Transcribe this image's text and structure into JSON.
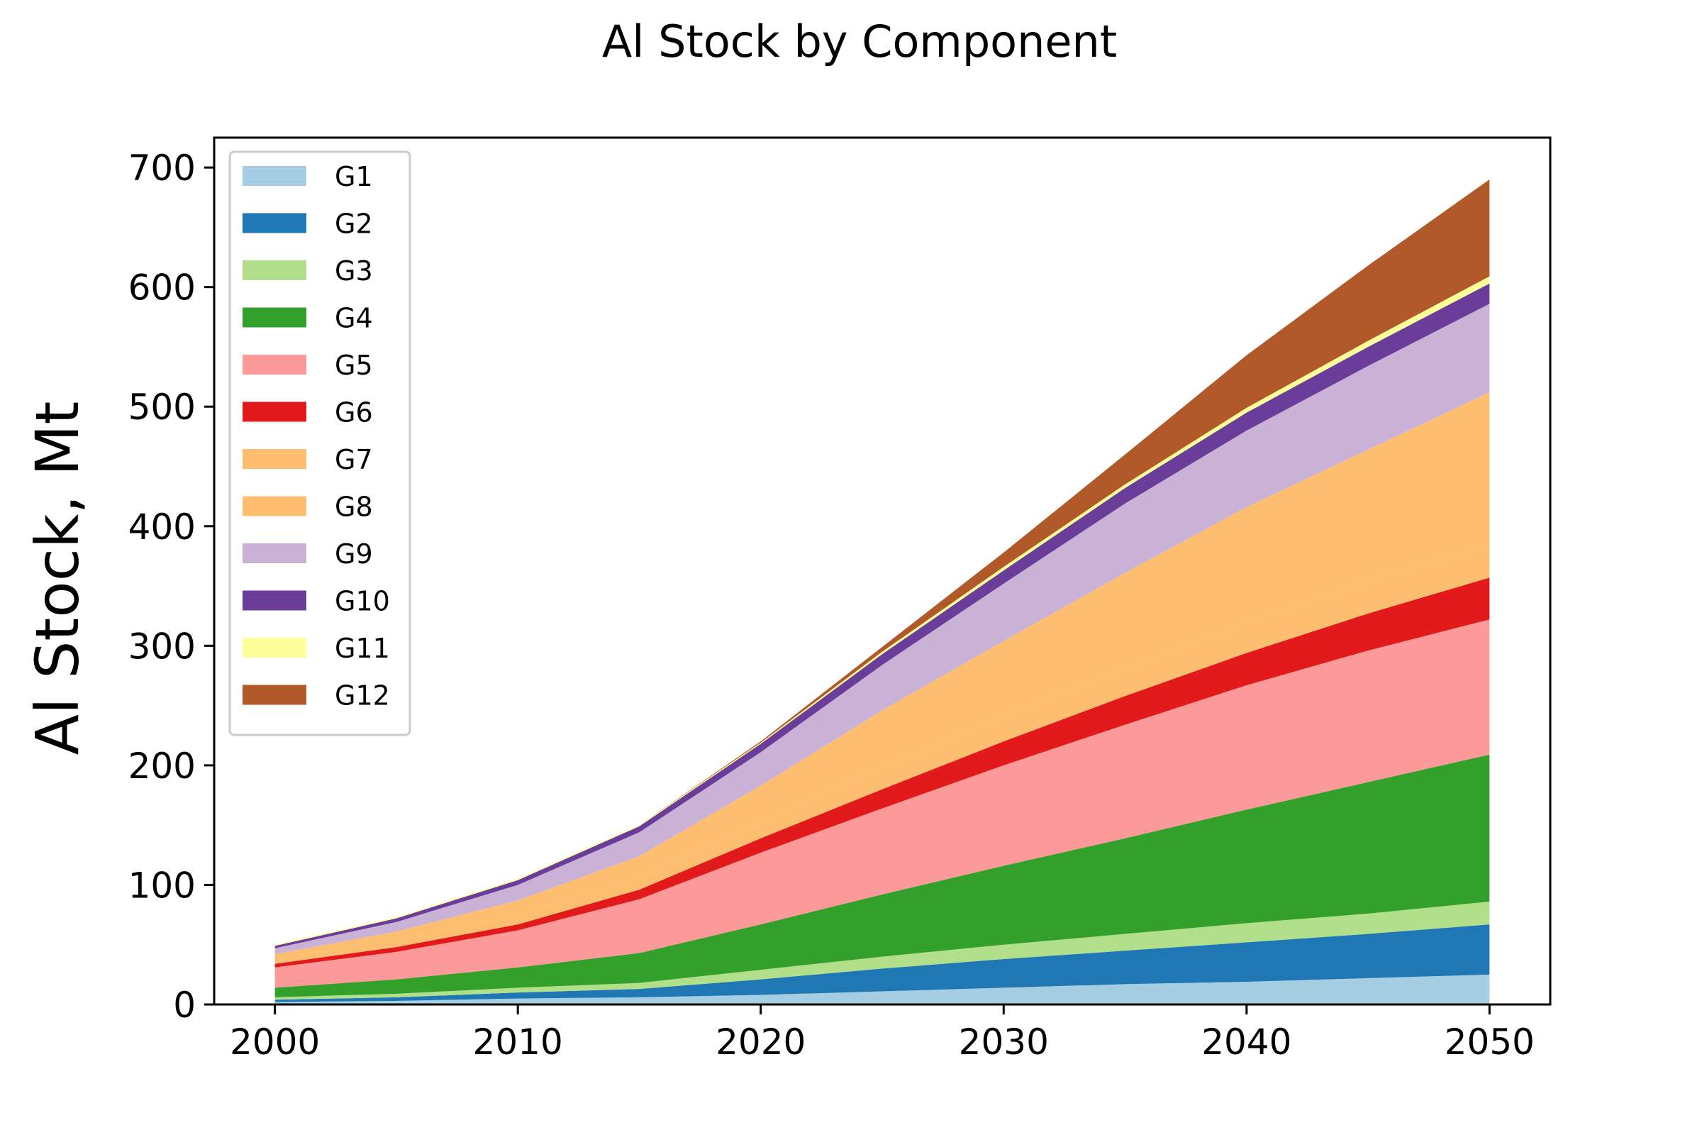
{
  "chart_data": {
    "type": "area",
    "stacked": true,
    "title": "Al Stock by Component",
    "xlabel": "",
    "ylabel": "Al Stock, Mt",
    "xlim": [
      1997.5,
      2052.5
    ],
    "ylim": [
      0,
      725
    ],
    "xticks": [
      2000,
      2010,
      2020,
      2030,
      2040,
      2050
    ],
    "yticks": [
      0,
      100,
      200,
      300,
      400,
      500,
      600,
      700
    ],
    "legend": "upper-left",
    "grid": false,
    "x": [
      2000,
      2005,
      2010,
      2015,
      2020,
      2025,
      2030,
      2035,
      2040,
      2045,
      2050
    ],
    "series": [
      {
        "name": "G1",
        "color": "#a6cee3",
        "values": [
          2,
          3,
          5,
          6,
          8,
          11,
          14,
          17,
          19,
          22,
          25
        ]
      },
      {
        "name": "G2",
        "color": "#1f78b4",
        "values": [
          2,
          3,
          5,
          7,
          13,
          19,
          24,
          28,
          33,
          37,
          42
        ]
      },
      {
        "name": "G3",
        "color": "#b2df8a",
        "values": [
          2,
          3,
          4,
          5,
          8,
          10,
          12,
          14,
          16,
          17,
          19
        ]
      },
      {
        "name": "G4",
        "color": "#33a02c",
        "values": [
          8,
          12,
          17,
          25,
          38,
          52,
          66,
          80,
          95,
          110,
          123
        ]
      },
      {
        "name": "G5",
        "color": "#fb9a99",
        "values": [
          17,
          23,
          31,
          45,
          60,
          72,
          84,
          95,
          104,
          110,
          113
        ]
      },
      {
        "name": "G6",
        "color": "#e31a1c",
        "values": [
          3,
          4,
          5,
          8,
          12,
          16,
          20,
          24,
          27,
          31,
          35
        ]
      },
      {
        "name": "G7",
        "color": "#fdbf6f",
        "values": [
          4,
          6,
          8,
          10,
          14,
          18,
          21,
          23,
          25,
          27,
          28
        ]
      },
      {
        "name": "G8",
        "color": "#fdbf6f",
        "values": [
          4,
          7,
          12,
          18,
          30,
          48,
          63,
          80,
          97,
          110,
          127
        ]
      },
      {
        "name": "G9",
        "color": "#cab2d6",
        "values": [
          5,
          8,
          13,
          20,
          28,
          38,
          48,
          58,
          64,
          70,
          74
        ]
      },
      {
        "name": "G10",
        "color": "#6a3d9a",
        "values": [
          2,
          3,
          4,
          5,
          7,
          9,
          11,
          13,
          15,
          16,
          17
        ]
      },
      {
        "name": "G11",
        "color": "#ffff99",
        "values": [
          1,
          1,
          1,
          1,
          1,
          2,
          3,
          3,
          4,
          5,
          6
        ]
      },
      {
        "name": "G12",
        "color": "#b15928",
        "values": [
          0,
          0,
          0,
          0,
          1,
          4,
          12,
          25,
          44,
          63,
          81
        ]
      }
    ]
  }
}
